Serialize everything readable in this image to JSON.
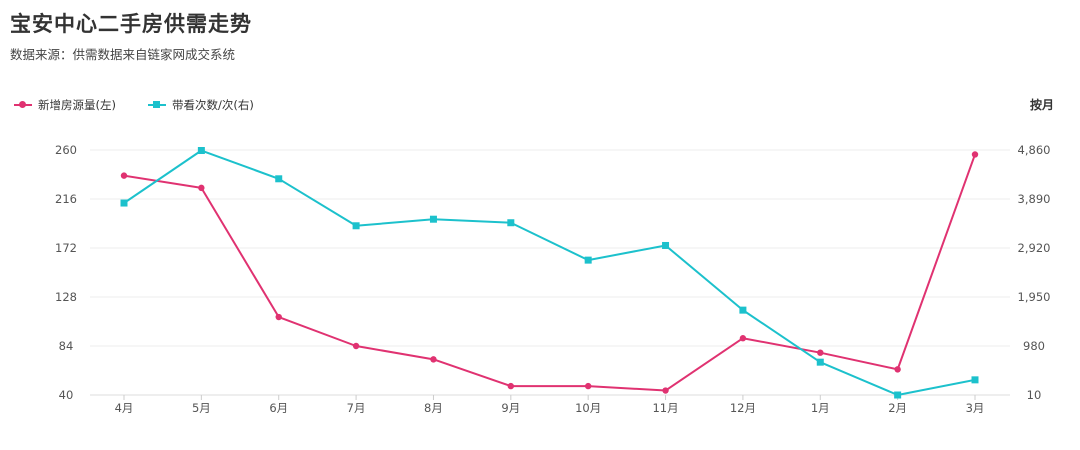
{
  "title": "宝安中心二手房供需走势",
  "subtitle": "数据来源：供需数据来自链家网成交系统",
  "period_label": "按月",
  "colors": {
    "series1": "#e03271",
    "series2": "#1cc1cc",
    "axis_text": "#555555",
    "grid": "#eeeeee"
  },
  "chart_data": {
    "type": "line",
    "categories": [
      "4月",
      "5月",
      "6月",
      "7月",
      "8月",
      "9月",
      "10月",
      "11月",
      "12月",
      "1月",
      "2月",
      "3月"
    ],
    "y_left": {
      "ticks": [
        "260",
        "216",
        "172",
        "128",
        "84",
        "40"
      ],
      "min": 40,
      "max": 260
    },
    "y_right": {
      "ticks": [
        "4,860",
        "3,890",
        "2,920",
        "1,950",
        "980",
        "10"
      ],
      "min": 10,
      "max": 4860
    },
    "grid": true,
    "legend_position": "top-left",
    "series": [
      {
        "name": "新增房源量(左)",
        "axis": "left",
        "marker": "circle",
        "values": [
          237,
          226,
          110,
          84,
          72,
          48,
          48,
          44,
          91,
          78,
          63,
          256
        ]
      },
      {
        "name": "带看次数/次(右)",
        "axis": "right",
        "marker": "square",
        "values": [
          3810,
          4850,
          4290,
          3360,
          3490,
          3420,
          2680,
          2970,
          1690,
          660,
          10,
          310
        ]
      }
    ]
  }
}
